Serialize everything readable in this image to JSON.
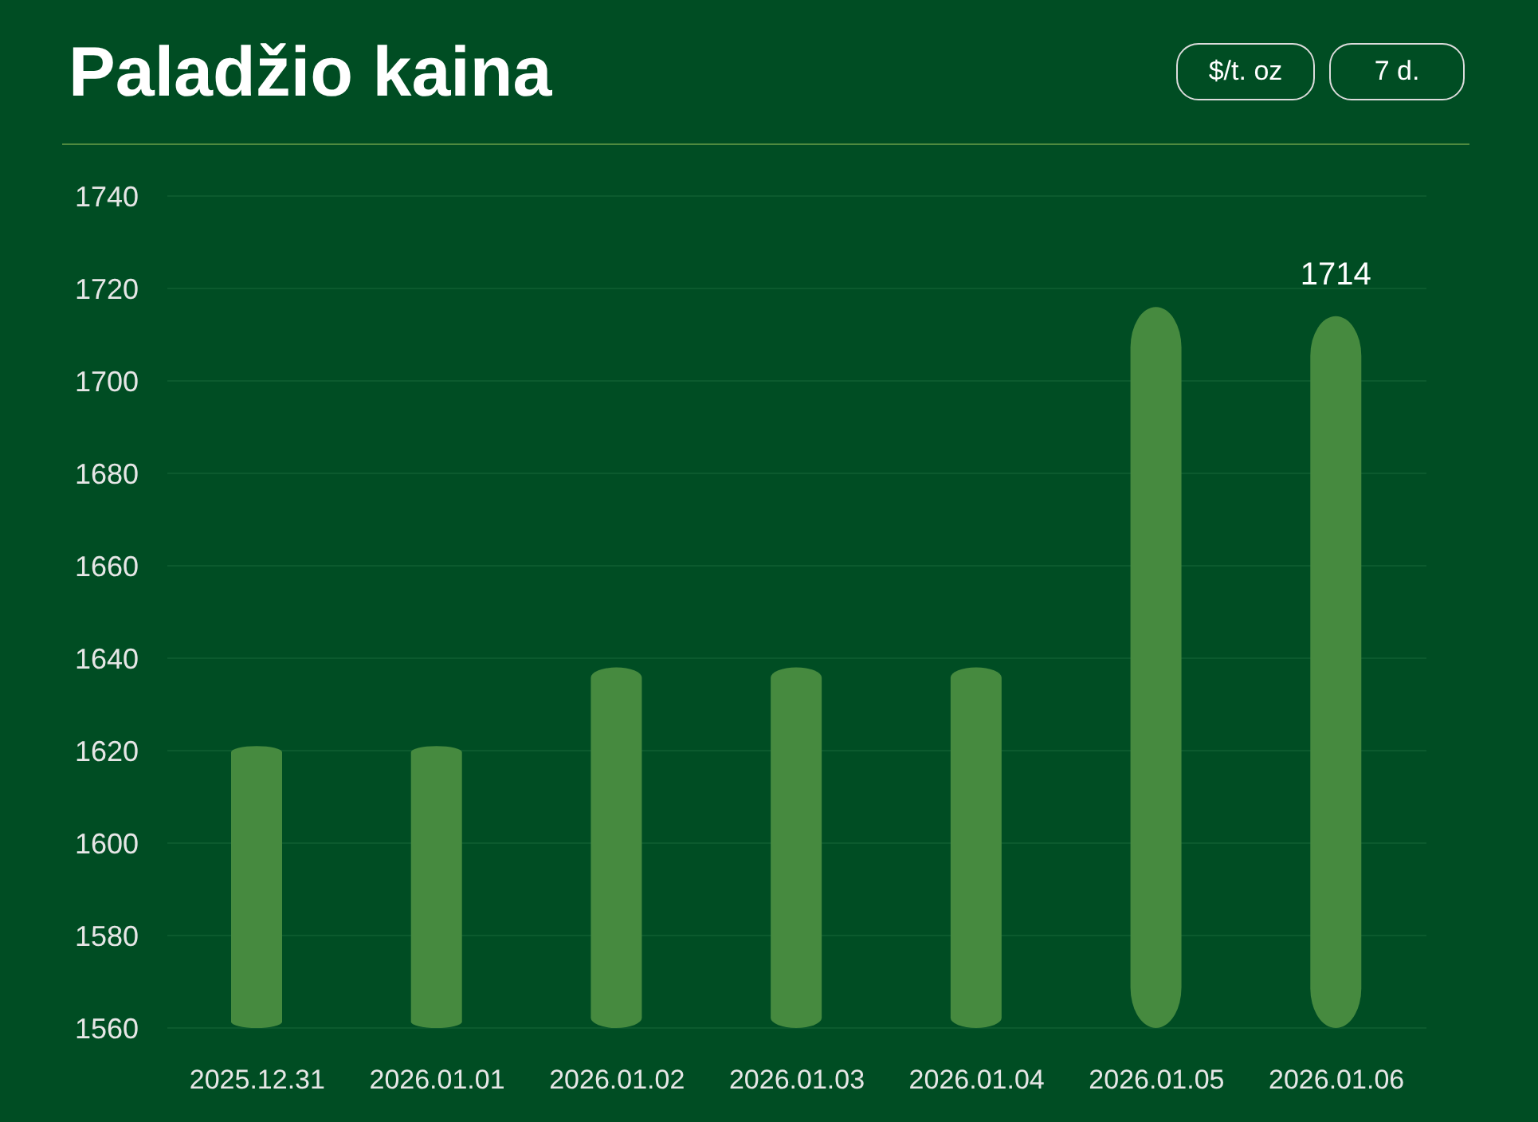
{
  "chart_data": {
    "type": "bar",
    "title": "Paladžio kaina",
    "annotations": [
      "$/t. oz",
      "7 d."
    ],
    "categories": [
      "2025.12.31",
      "2026.01.01",
      "2026.01.02",
      "2026.01.03",
      "2026.01.04",
      "2026.01.05",
      "2026.01.06"
    ],
    "values": [
      1621,
      1621,
      1638,
      1638,
      1638,
      1716,
      1714
    ],
    "color": "#468a3f",
    "ylim": [
      1560,
      1740
    ],
    "yticks": [
      1560,
      1580,
      1600,
      1620,
      1640,
      1660,
      1680,
      1700,
      1720,
      1740
    ],
    "grid": "y",
    "value_labels": [
      null,
      null,
      null,
      null,
      null,
      null,
      "1714"
    ]
  }
}
